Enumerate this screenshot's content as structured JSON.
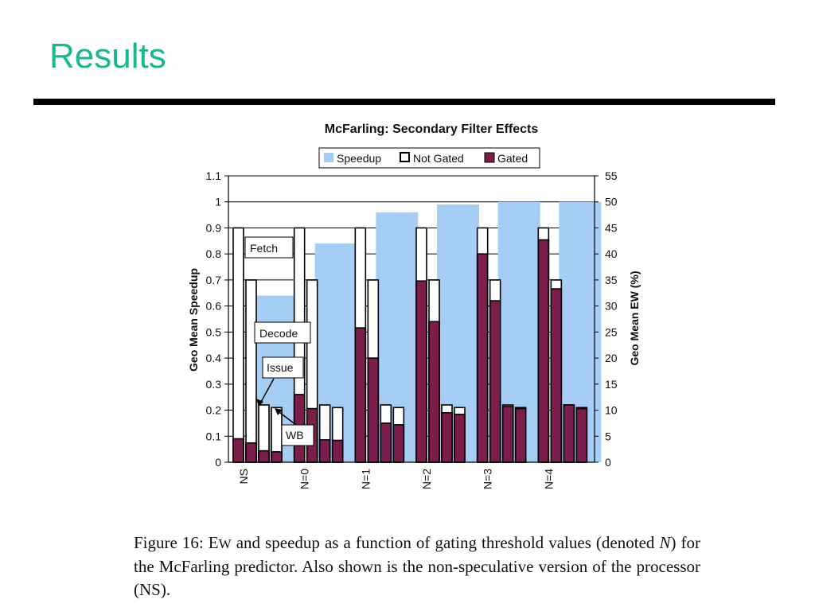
{
  "slide": {
    "title": "Results"
  },
  "chart_data": {
    "type": "bar",
    "title": "McFarling: Secondary Filter Effects",
    "legend": {
      "placement": "top-center",
      "entries": [
        {
          "label": "Speedup",
          "color": "#a6cdf3",
          "style": "fill"
        },
        {
          "label": "Not Gated",
          "color": "#ffffff",
          "style": "outline"
        },
        {
          "label": "Gated",
          "color": "#7b1e4a",
          "style": "fill"
        }
      ]
    },
    "ylabel": "Geo Mean Speedup",
    "y2label": "Geo Mean EW (%)",
    "ylim": [
      0,
      1.1
    ],
    "y2lim": [
      0,
      55
    ],
    "yticks": [
      "0",
      "0.1",
      "0.2",
      "0.3",
      "0.4",
      "0.5",
      "0.6",
      "0.7",
      "0.8",
      "0.9",
      "1",
      "1.1"
    ],
    "y2ticks": [
      "0",
      "5",
      "10",
      "15",
      "20",
      "25",
      "30",
      "35",
      "40",
      "45",
      "50",
      "55"
    ],
    "grid": "horizontal",
    "categories": [
      "NS",
      "N=0",
      "N=1",
      "N=2",
      "N=3",
      "N=4"
    ],
    "stages": [
      "Fetch",
      "Decode",
      "Issue",
      "WB"
    ],
    "speedup": [
      0.64,
      0.84,
      0.96,
      0.99,
      1.0,
      1.0
    ],
    "series": [
      {
        "name": "Not Gated",
        "axis": "right",
        "unit": "%",
        "values": [
          [
            45,
            35,
            11,
            10.5
          ],
          [
            45,
            35,
            11,
            10.5
          ],
          [
            45,
            35,
            11,
            10.5
          ],
          [
            45,
            35,
            11,
            10.5
          ],
          [
            45,
            35,
            11,
            10.5
          ],
          [
            45,
            35,
            11,
            10.5
          ]
        ]
      },
      {
        "name": "Gated",
        "axis": "right",
        "unit": "%",
        "values": [
          [
            4.5,
            3.7,
            2.2,
            2.0
          ],
          [
            13,
            10.3,
            4.3,
            4.2
          ],
          [
            25.8,
            20,
            7.5,
            7.2
          ],
          [
            34.8,
            27,
            9.5,
            9.2
          ],
          [
            40,
            31,
            10.7,
            10.3
          ],
          [
            42.7,
            33.3,
            11,
            10.3
          ]
        ]
      }
    ],
    "annotations": [
      "Fetch",
      "Decode",
      "Issue",
      "WB"
    ]
  },
  "caption": {
    "prefix": "Figure 16: ",
    "ew_first": "E",
    "ew_rest": "W",
    "mid": " and speedup as a function of gating threshold values (denoted ",
    "n": "N",
    "end": ") for the McFarling predictor.  Also shown is the non-speculative version of the processor (NS)."
  }
}
